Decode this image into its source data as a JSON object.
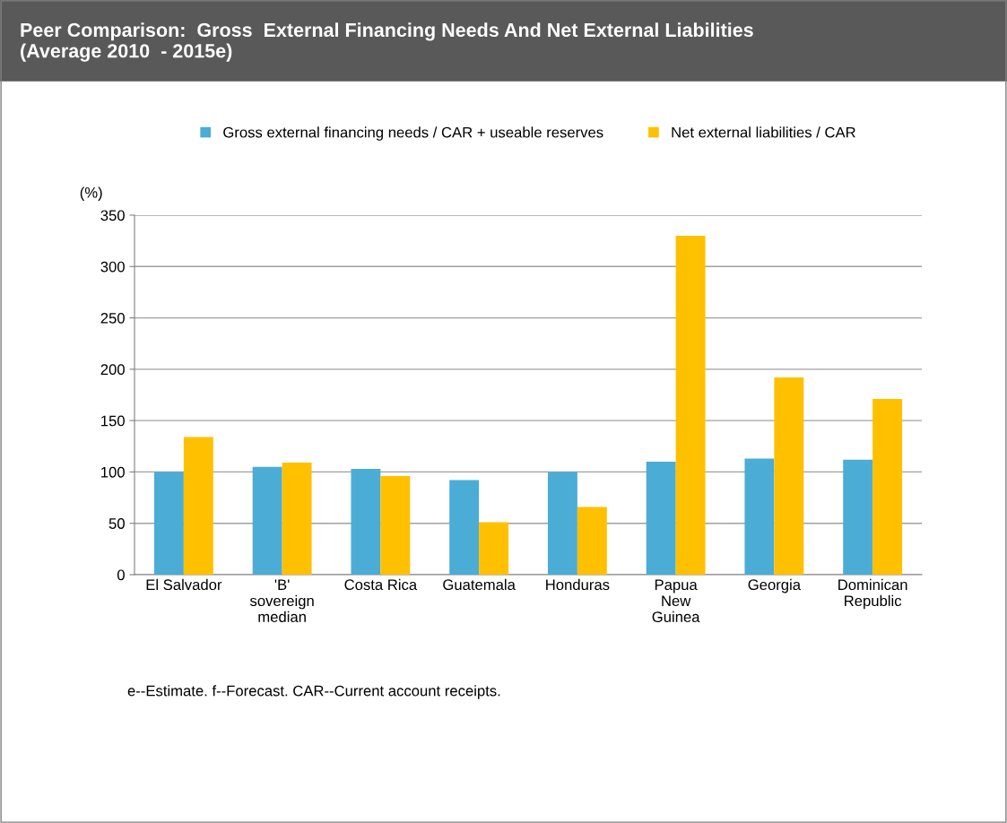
{
  "chart_data": {
    "type": "bar",
    "title": "Peer Comparison:  Gross  External Financing Needs And Net External Liabilities\n(Average 2010  - 2015e)",
    "ylabel": "(%)",
    "categories": [
      "El Salvador",
      "'B'\nsovereign\nmedian",
      "Costa Rica",
      "Guatemala",
      "Honduras",
      "Papua\nNew\nGuinea",
      "Georgia",
      "Dominican\nRepublic"
    ],
    "series": [
      {
        "name": "Gross external financing needs / CAR + useable reserves",
        "color": "#4bacd6",
        "values": [
          100,
          105,
          103,
          92,
          100,
          110,
          113,
          112
        ]
      },
      {
        "name": "Net external liabilities / CAR",
        "color": "#ffc000",
        "values": [
          134,
          109,
          96,
          51,
          66,
          330,
          192,
          171
        ]
      }
    ],
    "ylim": [
      0,
      350
    ],
    "yticks": [
      0,
      50,
      100,
      150,
      200,
      250,
      300,
      350
    ],
    "grid": "y",
    "legend": "top",
    "annotations": [
      "e--Estimate. f--Forecast. CAR--Current account receipts."
    ]
  }
}
